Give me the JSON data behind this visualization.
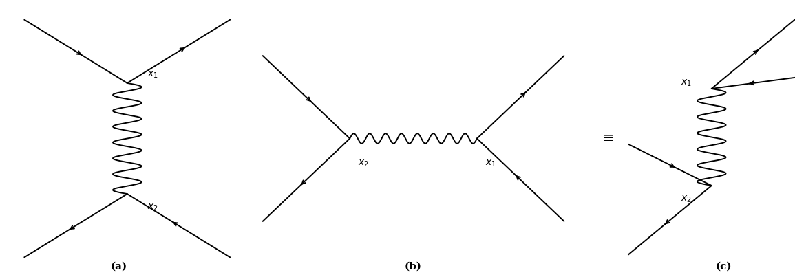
{
  "bg_color": "#ffffff",
  "line_color": "#000000",
  "label_a": "(a)",
  "label_b": "(b)",
  "label_c": "(c)",
  "equiv_symbol": "≡",
  "x1_label": "$x_1$",
  "x2_label": "$x_2$",
  "figsize": [
    11.55,
    4.03
  ],
  "dpi": 100
}
